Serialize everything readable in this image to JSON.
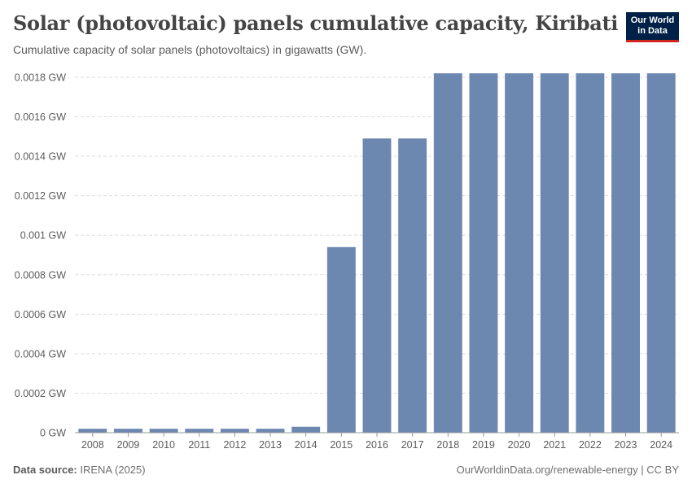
{
  "header": {
    "title": "Solar (photovoltaic) panels cumulative capacity, Kiribati",
    "subtitle": "Cumulative capacity of solar panels (photovoltaics) in gigawatts (GW)."
  },
  "logo": {
    "line1": "Our World",
    "line2": "in Data"
  },
  "footer": {
    "source_label": "Data source:",
    "source_value": "IRENA (2025)",
    "link": "OurWorldinData.org/renewable-energy | CC BY"
  },
  "colors": {
    "bar": "#6d88b0",
    "grid": "#dddddd",
    "axis": "#999999",
    "text": "#5b5b5b"
  },
  "chart_data": {
    "type": "bar",
    "categories": [
      "2008",
      "2009",
      "2010",
      "2011",
      "2012",
      "2013",
      "2014",
      "2015",
      "2016",
      "2017",
      "2018",
      "2019",
      "2020",
      "2021",
      "2022",
      "2023",
      "2024"
    ],
    "values": [
      2e-05,
      2e-05,
      2e-05,
      2e-05,
      2e-05,
      2e-05,
      3e-05,
      0.00094,
      0.00149,
      0.00149,
      0.00182,
      0.00182,
      0.00182,
      0.00182,
      0.00182,
      0.00182,
      0.00182
    ],
    "unit": "GW",
    "ylim": [
      0,
      0.0018
    ],
    "yticks": [
      0,
      0.0002,
      0.0004,
      0.0006,
      0.0008,
      0.001,
      0.0012,
      0.0014,
      0.0016,
      0.0018
    ],
    "ytick_labels": [
      "0 GW",
      "0.0002 GW",
      "0.0004 GW",
      "0.0006 GW",
      "0.0008 GW",
      "0.001 GW",
      "0.0012 GW",
      "0.0014 GW",
      "0.0016 GW",
      "0.0018 GW"
    ],
    "grid": true,
    "xlabel": "",
    "ylabel": ""
  }
}
